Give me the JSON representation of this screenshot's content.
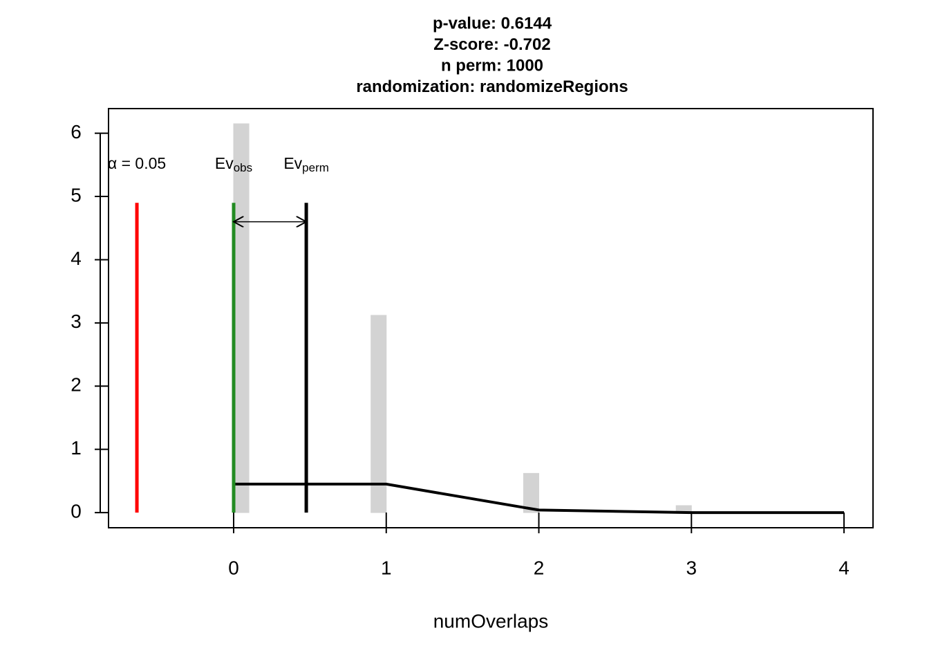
{
  "chart_data": {
    "type": "histogram",
    "title_lines": [
      "p-value:  0.6144",
      "Z-score:  -0.702",
      "n perm:  1000",
      "randomization:  randomizeRegions"
    ],
    "xlabel": "numOverlaps",
    "bins": [
      0,
      0.1,
      0.2,
      0.3,
      0.4,
      0.5,
      0.6,
      0.7,
      0.8,
      0.9,
      1,
      1.1,
      1.2,
      1.3,
      1.4,
      1.5,
      1.6,
      1.7,
      1.8,
      1.9,
      2,
      2.1,
      2.2,
      2.3,
      2.4,
      2.5,
      2.6,
      2.7,
      2.8,
      2.9,
      3
    ],
    "values": [
      6.15,
      0,
      0,
      0,
      0,
      0,
      0,
      0,
      0,
      3.12,
      0,
      0,
      0,
      0,
      0,
      0,
      0,
      0,
      0,
      0.62,
      0,
      0,
      0,
      0,
      0,
      0,
      0,
      0,
      0,
      0.11
    ],
    "color": "#d3d3d3",
    "xlim": [
      -0.82,
      4.19
    ],
    "ylim": [
      -0.24,
      6.39
    ],
    "xticks": [
      0,
      1,
      2,
      3,
      4
    ],
    "yticks": [
      0,
      1,
      2,
      3,
      4,
      5,
      6
    ],
    "density_line": {
      "x": [
        0,
        1,
        2,
        3,
        4
      ],
      "y": [
        0.45,
        0.45,
        0.04,
        0,
        0
      ],
      "color": "#000000"
    },
    "markers": [
      {
        "x": -0.634,
        "top": 4.9,
        "color": "#ff0000",
        "label": "α = 0.05"
      },
      {
        "x": 0,
        "top": 4.9,
        "color": "#228b22",
        "label": "Ev",
        "sub": "obs"
      },
      {
        "x": 0.476,
        "top": 4.9,
        "color": "#000000",
        "label": "Ev",
        "sub": "perm"
      }
    ],
    "arrow": {
      "from": 0,
      "to": 0.476,
      "y": 4.6
    }
  }
}
